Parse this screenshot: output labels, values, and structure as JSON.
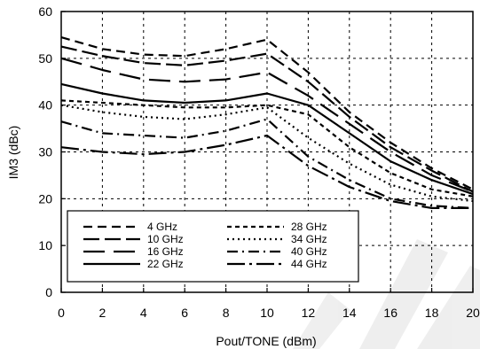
{
  "chart_data": {
    "type": "line",
    "title": "",
    "xlabel": "Pout/TONE (dBm)",
    "ylabel": "IM3 (dBc)",
    "xlim": [
      0,
      20
    ],
    "ylim": [
      0,
      60
    ],
    "xticks": [
      0,
      2,
      4,
      6,
      8,
      10,
      12,
      14,
      16,
      18,
      20
    ],
    "yticks": [
      0,
      10,
      20,
      30,
      40,
      50,
      60
    ],
    "grid": true,
    "legend_position": "lower-left",
    "series": [
      {
        "name": "4 GHz",
        "dash": "dash",
        "x": [
          0,
          2,
          4,
          6,
          8,
          10,
          12,
          14,
          16,
          18,
          20
        ],
        "y": [
          54.5,
          52,
          50.8,
          50.5,
          52,
          54,
          47,
          38.5,
          32,
          26.5,
          22
        ]
      },
      {
        "name": "10 GHz",
        "dash": "longdash",
        "x": [
          0,
          2,
          4,
          6,
          8,
          10,
          12,
          14,
          16,
          18,
          20
        ],
        "y": [
          52.5,
          50.5,
          49,
          48.5,
          49.5,
          51,
          45,
          37.5,
          31,
          26,
          21.5
        ]
      },
      {
        "name": "16 GHz",
        "dash": "longlongdash",
        "x": [
          0,
          2,
          4,
          6,
          8,
          10,
          12,
          14,
          16,
          18,
          20
        ],
        "y": [
          50,
          47.5,
          45.5,
          45,
          45.5,
          47,
          42,
          36,
          30,
          25,
          21.5
        ]
      },
      {
        "name": "22 GHz",
        "dash": "solid",
        "x": [
          0,
          2,
          4,
          6,
          8,
          10,
          12,
          14,
          16,
          18,
          20
        ],
        "y": [
          44.5,
          42.5,
          41,
          40.5,
          41,
          42.5,
          40,
          34,
          28,
          24,
          21
        ]
      },
      {
        "name": "28 GHz",
        "dash": "shortdash",
        "x": [
          0,
          2,
          4,
          6,
          8,
          10,
          12,
          14,
          16,
          18,
          20
        ],
        "y": [
          41,
          40.5,
          40,
          39.5,
          39.5,
          40,
          38,
          31,
          25.5,
          22,
          20.5
        ]
      },
      {
        "name": "34 GHz",
        "dash": "dot",
        "x": [
          0,
          2,
          4,
          6,
          8,
          10,
          12,
          14,
          16,
          18,
          20
        ],
        "y": [
          40,
          38.5,
          37.5,
          37,
          38,
          39.5,
          33,
          27.5,
          23,
          20.5,
          19.5
        ]
      },
      {
        "name": "40 GHz",
        "dash": "dashdot",
        "x": [
          0,
          2,
          4,
          6,
          8,
          10,
          12,
          14,
          16,
          18,
          20
        ],
        "y": [
          36.5,
          34,
          33.5,
          33,
          34.5,
          37,
          29,
          24,
          20,
          18.5,
          18
        ]
      },
      {
        "name": "44 GHz",
        "dash": "longdashdot",
        "x": [
          0,
          2,
          4,
          6,
          8,
          10,
          12,
          14,
          16,
          18,
          20
        ],
        "y": [
          31,
          30,
          29.5,
          30,
          31.5,
          33.5,
          27,
          22.5,
          19.5,
          18,
          18
        ]
      }
    ]
  }
}
